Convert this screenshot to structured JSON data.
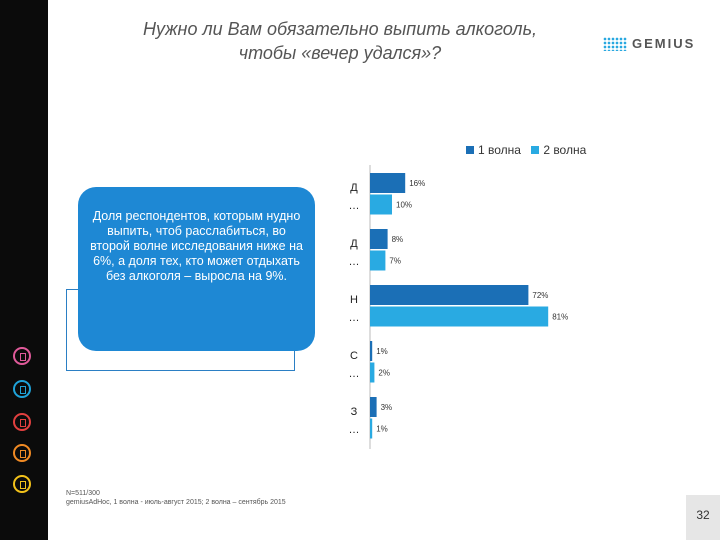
{
  "title": {
    "line1": "Нужно ли Вам обязательно выпить алкоголь,",
    "line2": "чтобы «вечер удался»?"
  },
  "logo": {
    "text": "GEMIUS"
  },
  "sidebar_icons": [
    {
      "name": "chart-icon",
      "color": "#e05a9a"
    },
    {
      "name": "microphone-icon",
      "color": "#1fa3d9"
    },
    {
      "name": "calendar-icon",
      "color": "#e2403f"
    },
    {
      "name": "wrench-icon",
      "color": "#f08a24"
    },
    {
      "name": "phone-icon",
      "color": "#f3c21a"
    }
  ],
  "callout": {
    "text": "Доля респондентов, которым нудно выпить, чтоб расслабиться, во второй волне исследования ниже на 6%, а доля тех, кто может отдыхать без алкоголя – выросла на 9%."
  },
  "footnote": {
    "line1": "N=511/300",
    "line2": "gemiusAdHoc, 1 волна - июль-август 2015; 2 волна – сентябрь 2015"
  },
  "page_number": "32",
  "colors": {
    "series1": "#1b6fb6",
    "series2": "#29aae2"
  },
  "chart_data": {
    "type": "bar",
    "orientation": "horizontal",
    "categories": [
      "Д…",
      "Д…",
      "Н…",
      "С…",
      "З…"
    ],
    "series": [
      {
        "name": "1 волна",
        "values": [
          16,
          8,
          72,
          1,
          3
        ]
      },
      {
        "name": "2 волна",
        "values": [
          10,
          7,
          81,
          2,
          1
        ]
      }
    ],
    "value_labels": [
      [
        "16%",
        "8%",
        "72%",
        "1%",
        "3%"
      ],
      [
        "10%",
        "7%",
        "81%",
        "2%",
        "1%"
      ]
    ],
    "unit": "%",
    "xlim": [
      0,
      100
    ],
    "grid": false,
    "legend_position": "top-right"
  }
}
